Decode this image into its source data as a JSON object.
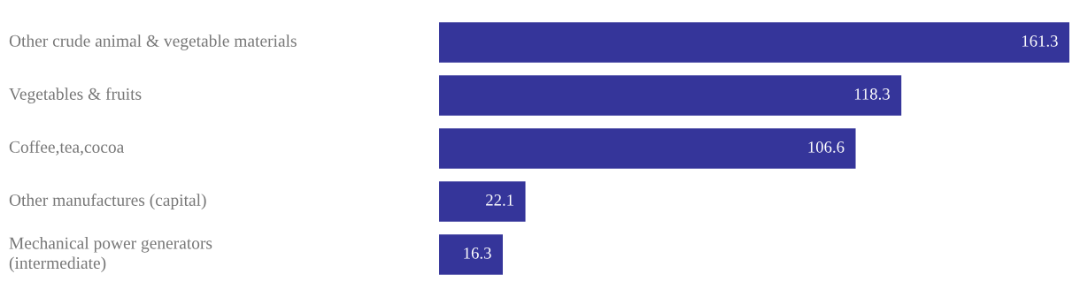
{
  "chart_data": {
    "type": "bar",
    "orientation": "horizontal",
    "categories": [
      "Other crude animal & vegetable materials",
      "Vegetables & fruits",
      "Coffee,tea,cocoa",
      "Other manufactures (capital)",
      "Mechanical power generators\n(intermediate)"
    ],
    "values": [
      161.3,
      118.3,
      106.6,
      22.1,
      16.3
    ],
    "color": "#35359a",
    "data_labels": true
  }
}
